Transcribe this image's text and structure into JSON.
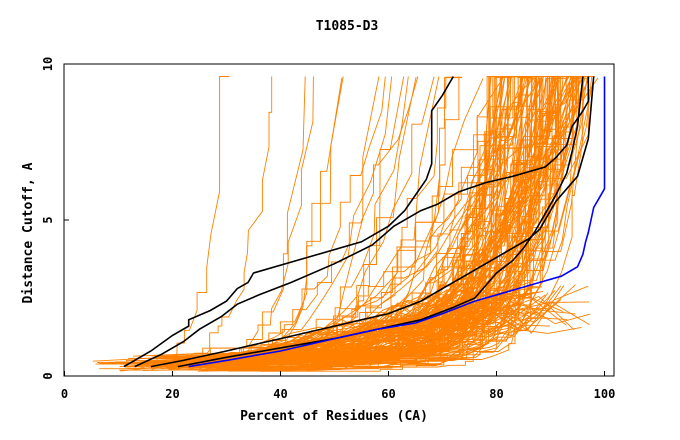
{
  "chart_data": {
    "type": "line",
    "title": "T1085-D3",
    "xlabel": "Percent of Residues (CA)",
    "ylabel": "Distance Cutoff, A",
    "xlim": [
      0,
      100
    ],
    "ylim": [
      0,
      10
    ],
    "xticks": [
      "0",
      "20",
      "40",
      "60",
      "80",
      "100"
    ],
    "yticks": [
      "0",
      "5",
      "10"
    ],
    "grid": false,
    "legend": "none",
    "colors": {
      "models": "#ff8000",
      "highlight_black": "#000000",
      "highlight_blue": "#0000ff"
    },
    "series": [
      {
        "color": "#000000",
        "x": [
          11,
          16,
          20,
          23,
          23,
          27,
          30,
          32,
          34,
          35,
          45,
          55,
          60,
          63,
          65,
          67,
          68,
          68,
          70,
          72
        ],
        "y": [
          0.3,
          0.8,
          1.3,
          1.6,
          1.8,
          2.1,
          2.4,
          2.8,
          3.0,
          3.3,
          3.8,
          4.3,
          4.8,
          5.3,
          5.8,
          6.3,
          6.8,
          8.5,
          9.0,
          9.6
        ]
      },
      {
        "color": "#000000",
        "x": [
          13,
          18,
          22,
          25,
          29,
          32,
          36,
          42,
          50,
          57,
          61,
          66,
          69,
          73,
          78,
          83,
          89,
          91,
          93,
          94,
          96,
          97,
          97
        ],
        "y": [
          0.3,
          0.7,
          1.1,
          1.5,
          1.9,
          2.3,
          2.6,
          3.0,
          3.6,
          4.2,
          4.8,
          5.3,
          5.5,
          5.9,
          6.2,
          6.4,
          6.7,
          7.0,
          7.4,
          8.0,
          8.5,
          8.8,
          9.6
        ]
      },
      {
        "color": "#000000",
        "x": [
          16,
          22,
          30,
          40,
          50,
          60,
          66,
          70,
          74,
          78,
          82,
          86,
          88,
          89,
          90,
          91,
          93,
          95,
          96,
          97,
          98
        ],
        "y": [
          0.3,
          0.5,
          0.8,
          1.2,
          1.6,
          2.0,
          2.4,
          2.8,
          3.2,
          3.6,
          4.0,
          4.4,
          4.7,
          5.0,
          5.3,
          5.6,
          6.0,
          6.4,
          7.0,
          7.6,
          9.6
        ]
      },
      {
        "color": "#000000",
        "x": [
          21,
          30,
          40,
          50,
          58,
          66,
          72,
          76,
          78,
          80,
          83,
          85,
          87,
          89,
          91,
          93,
          94,
          95,
          96
        ],
        "y": [
          0.3,
          0.6,
          0.9,
          1.2,
          1.5,
          1.8,
          2.2,
          2.5,
          2.9,
          3.3,
          3.7,
          4.1,
          4.6,
          5.2,
          5.8,
          6.5,
          7.2,
          8.0,
          9.6
        ]
      },
      {
        "color": "#0000ff",
        "x": [
          23,
          30,
          40,
          50,
          58,
          65,
          70,
          76,
          82,
          88,
          92,
          95,
          96,
          96.5,
          97,
          97.5,
          98,
          99,
          100,
          100
        ],
        "y": [
          0.3,
          0.5,
          0.8,
          1.2,
          1.5,
          1.7,
          2.0,
          2.4,
          2.7,
          3.0,
          3.2,
          3.5,
          3.9,
          4.3,
          4.6,
          5.0,
          5.4,
          5.7,
          6.0,
          9.6
        ]
      }
    ]
  }
}
